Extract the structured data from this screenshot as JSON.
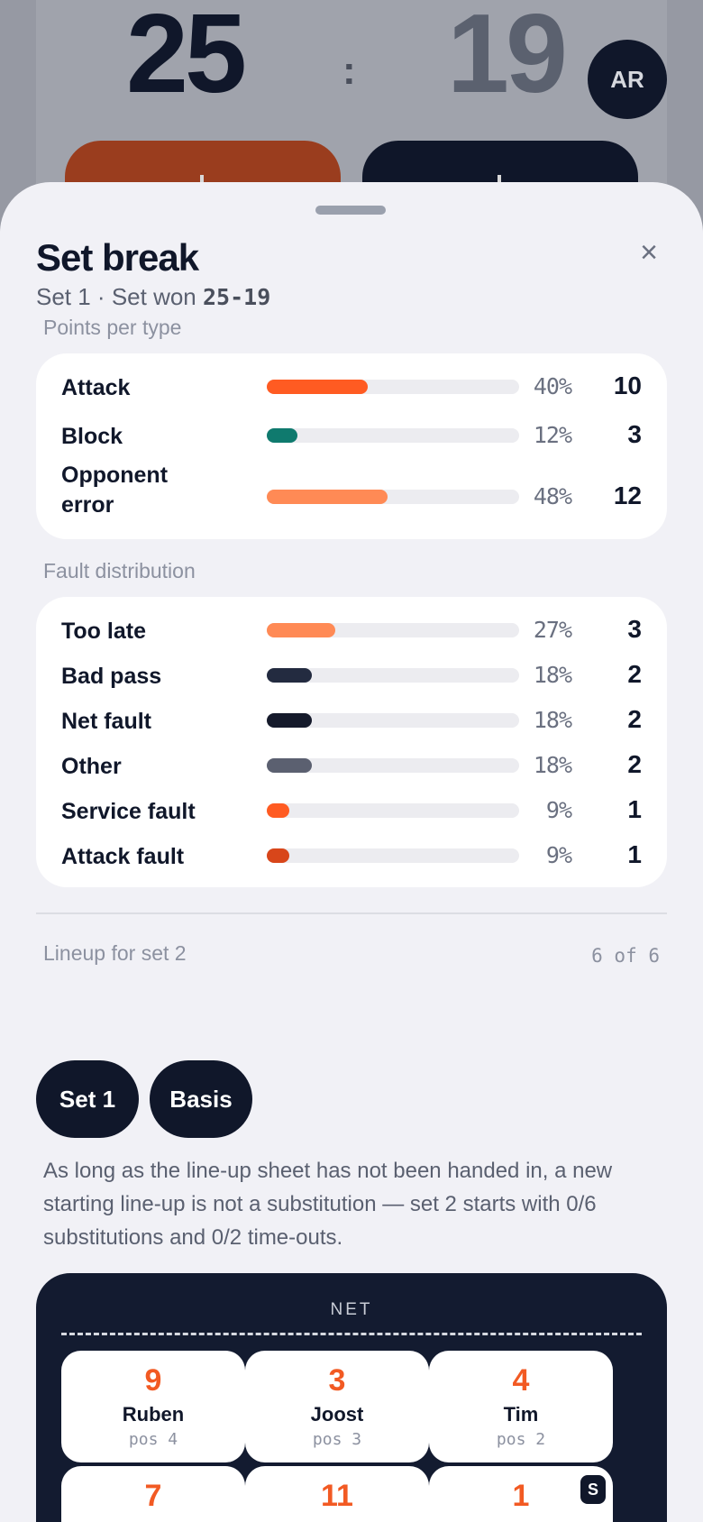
{
  "scoreboard": {
    "home_score": "25",
    "separator": ":",
    "away_score": "19",
    "avatar_initials": "AR"
  },
  "sheet": {
    "title": "Set break",
    "subtitle_prefix": "Set 1 · Set won ",
    "subtitle_score": "25-19",
    "close_icon": "×"
  },
  "points_per_type": {
    "label": "Points per type",
    "rows": [
      {
        "label": "Attack",
        "percent": "40%",
        "fraction": 0.4,
        "count": "10",
        "color": "#ff5b22"
      },
      {
        "label": "Block",
        "percent": "12%",
        "fraction": 0.12,
        "count": "3",
        "color": "#0f7a6e"
      },
      {
        "label": "Opponent error",
        "percent": "48%",
        "fraction": 0.48,
        "count": "12",
        "color": "#ff8a55"
      }
    ]
  },
  "fault_distribution": {
    "label": "Fault distribution",
    "rows": [
      {
        "label": "Too late",
        "percent": "27%",
        "fraction": 0.27,
        "count": "3",
        "color": "#ff8a55"
      },
      {
        "label": "Bad pass",
        "percent": "18%",
        "fraction": 0.18,
        "count": "2",
        "color": "#232b40"
      },
      {
        "label": "Net fault",
        "percent": "18%",
        "fraction": 0.18,
        "count": "2",
        "color": "#151a2b"
      },
      {
        "label": "Other",
        "percent": "18%",
        "fraction": 0.18,
        "count": "2",
        "color": "#5b6070"
      },
      {
        "label": "Service fault",
        "percent": "9%",
        "fraction": 0.09,
        "count": "1",
        "color": "#ff5b22"
      },
      {
        "label": "Attack fault",
        "percent": "9%",
        "fraction": 0.09,
        "count": "1",
        "color": "#d8461a"
      }
    ]
  },
  "lineup": {
    "label": "Lineup for set 2",
    "count": "6 of 6",
    "buttons": [
      "Set 1",
      "Basis"
    ],
    "note": "As long as the line-up sheet has not been handed in, a new starting line-up is not a substitution — set 2 starts with 0/6 substitutions and 0/2 time-outs.",
    "net_label": "NET",
    "players": [
      {
        "number": "9",
        "name": "Ruben",
        "pos": "pos 4"
      },
      {
        "number": "3",
        "name": "Joost",
        "pos": "pos 3"
      },
      {
        "number": "4",
        "name": "Tim",
        "pos": "pos 2"
      },
      {
        "number": "7",
        "name": "",
        "pos": ""
      },
      {
        "number": "11",
        "name": "",
        "pos": ""
      },
      {
        "number": "1",
        "name": "",
        "pos": "",
        "badge": "S"
      }
    ]
  },
  "colors": {
    "accent": "#f25a23",
    "navy": "#10172a"
  }
}
